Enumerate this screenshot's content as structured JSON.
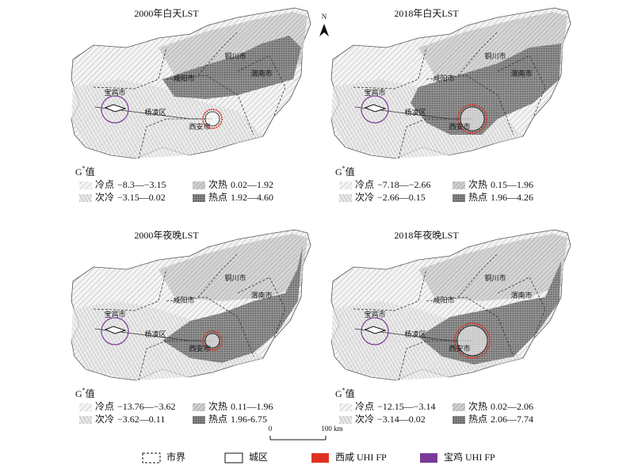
{
  "north": "N",
  "panels": [
    {
      "title": "2000年白天LST",
      "legend_title": {
        "symbol": "G",
        "sup": "*",
        "suffix": "值"
      },
      "classes": [
        {
          "label": "冷点",
          "range": "−8.3—−3.15"
        },
        {
          "label": "次冷",
          "range": "−3.15—0.02"
        },
        {
          "label": "次热",
          "range": "0.02—1.92"
        },
        {
          "label": "热点",
          "range": "1.92—4.60"
        }
      ]
    },
    {
      "title": "2018年白天LST",
      "legend_title": {
        "symbol": "G",
        "sup": "*",
        "suffix": "值"
      },
      "classes": [
        {
          "label": "冷点",
          "range": "−7.18—−2.66"
        },
        {
          "label": "次冷",
          "range": "−2.66—0.15"
        },
        {
          "label": "次热",
          "range": "0.15—1.96"
        },
        {
          "label": "热点",
          "range": "1.96—4.26"
        }
      ]
    },
    {
      "title": "2000年夜晚LST",
      "legend_title": {
        "symbol": "G",
        "sup": "*",
        "suffix": "值"
      },
      "classes": [
        {
          "label": "冷点",
          "range": "−13.76—−3.62"
        },
        {
          "label": "次冷",
          "range": "−3.62—0.11"
        },
        {
          "label": "次热",
          "range": "0.11—1.96"
        },
        {
          "label": "热点",
          "range": "1.96-6.75"
        }
      ]
    },
    {
      "title": "2018年夜晚LST",
      "legend_title": {
        "symbol": "G",
        "sup": "*",
        "suffix": "值"
      },
      "classes": [
        {
          "label": "冷点",
          "range": "−12.15—−3.14"
        },
        {
          "label": "次冷",
          "range": "−3.14—0.02"
        },
        {
          "label": "次热",
          "range": "0.02—2.06"
        },
        {
          "label": "热点",
          "range": "2.06—7.74"
        }
      ]
    }
  ],
  "cities": [
    "宝鸡市",
    "咸阳市",
    "铜川市",
    "渭南市",
    "杨凌区",
    "西安市"
  ],
  "scale": {
    "start": "0",
    "end": "100 km"
  },
  "legend": [
    "市界",
    "城区",
    "西咸 UHI FP",
    "宝鸡 UHI FP"
  ]
}
